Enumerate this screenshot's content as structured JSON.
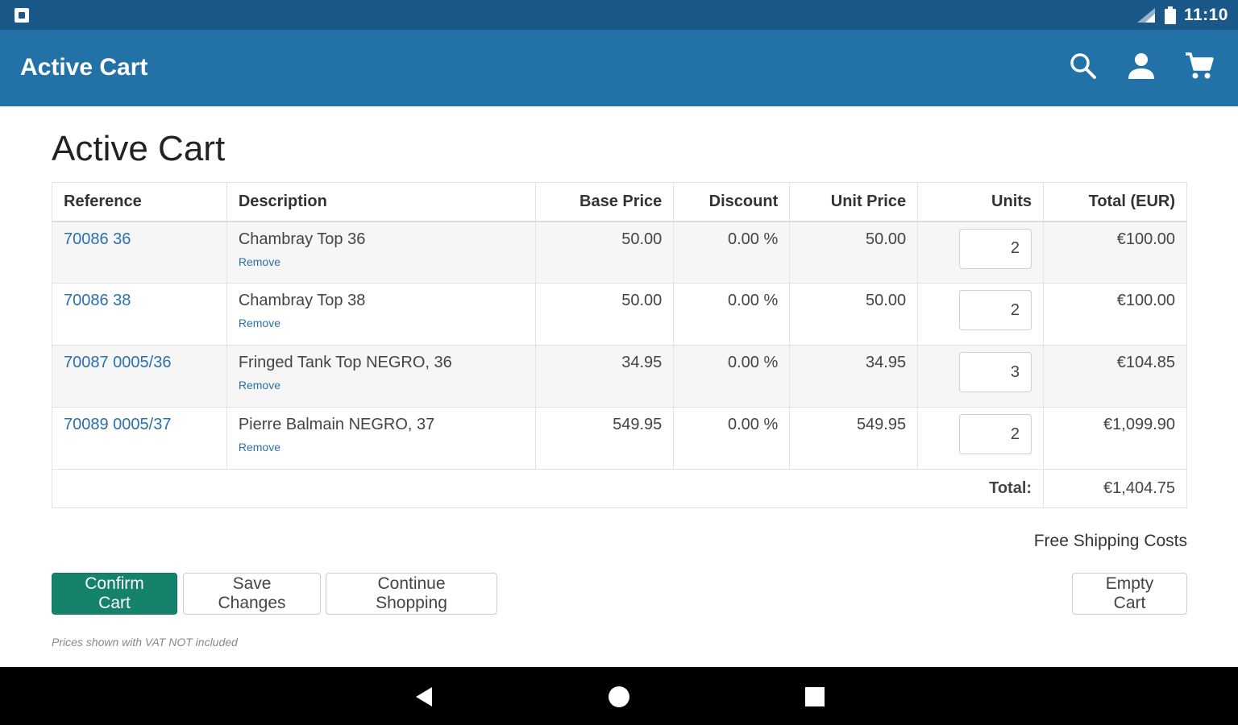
{
  "status_bar": {
    "time": "11:10",
    "icons": [
      "notification-icon",
      "signal-icon",
      "battery-icon"
    ]
  },
  "app_bar": {
    "title": "Active Cart",
    "actions": [
      "search-icon",
      "account-icon",
      "cart-icon"
    ]
  },
  "page": {
    "title": "Active Cart"
  },
  "table": {
    "headers": {
      "reference": "Reference",
      "description": "Description",
      "base_price": "Base Price",
      "discount": "Discount",
      "unit_price": "Unit Price",
      "units": "Units",
      "total": "Total (EUR)"
    },
    "rows": [
      {
        "reference": "70086 36",
        "description": "Chambray Top 36",
        "remove": "Remove",
        "base_price": "50.00",
        "discount": "0.00 %",
        "unit_price": "50.00",
        "units": "2",
        "total": "€100.00"
      },
      {
        "reference": "70086 38",
        "description": "Chambray Top 38",
        "remove": "Remove",
        "base_price": "50.00",
        "discount": "0.00 %",
        "unit_price": "50.00",
        "units": "2",
        "total": "€100.00"
      },
      {
        "reference": "70087 0005/36",
        "description": "Fringed Tank Top NEGRO, 36",
        "remove": "Remove",
        "base_price": "34.95",
        "discount": "0.00 %",
        "unit_price": "34.95",
        "units": "3",
        "total": "€104.85"
      },
      {
        "reference": "70089 0005/37",
        "description": "Pierre Balmain NEGRO, 37",
        "remove": "Remove",
        "base_price": "549.95",
        "discount": "0.00 %",
        "unit_price": "549.95",
        "units": "2",
        "total": "€1,099.90"
      }
    ],
    "total_label": "Total:",
    "total_value": "€1,404.75"
  },
  "shipping": "Free Shipping Costs",
  "buttons": {
    "confirm": "Confirm Cart",
    "save": "Save Changes",
    "continue": "Continue Shopping",
    "empty": "Empty Cart"
  },
  "vat_note": "Prices shown with VAT NOT included",
  "colors": {
    "status_bar": "#1a5889",
    "app_bar": "#2272a8",
    "link": "#2a70ad",
    "confirm_button": "#15826c"
  }
}
